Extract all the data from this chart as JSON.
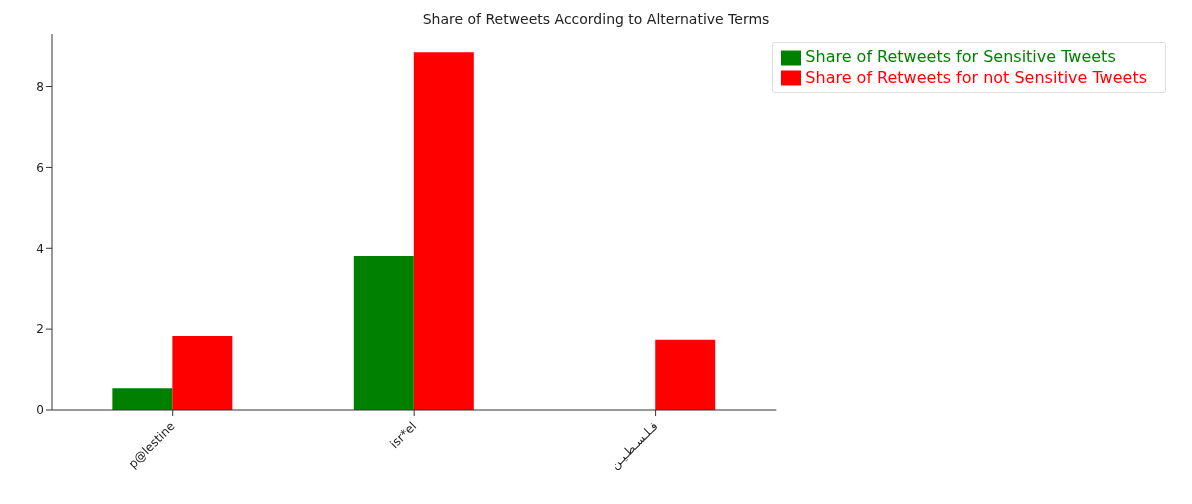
{
  "chart_data": {
    "type": "bar",
    "title": "Share of Retweets According to Alternative Terms",
    "categories": [
      "p@lestine",
      "isr*el",
      "فـلـسـطـيـن"
    ],
    "series": [
      {
        "name": "Share of Retweets for Sensitive Tweets",
        "color": "#008000",
        "values": [
          0.54,
          3.81,
          0
        ]
      },
      {
        "name": "Share of Retweets for not Sensitive Tweets",
        "color": "#ff0000",
        "values": [
          1.83,
          8.85,
          1.74
        ]
      }
    ],
    "ylim": [
      0,
      9.3
    ],
    "yticks": [
      0,
      2,
      4,
      6,
      8
    ],
    "grid": false,
    "legend": "top right"
  }
}
